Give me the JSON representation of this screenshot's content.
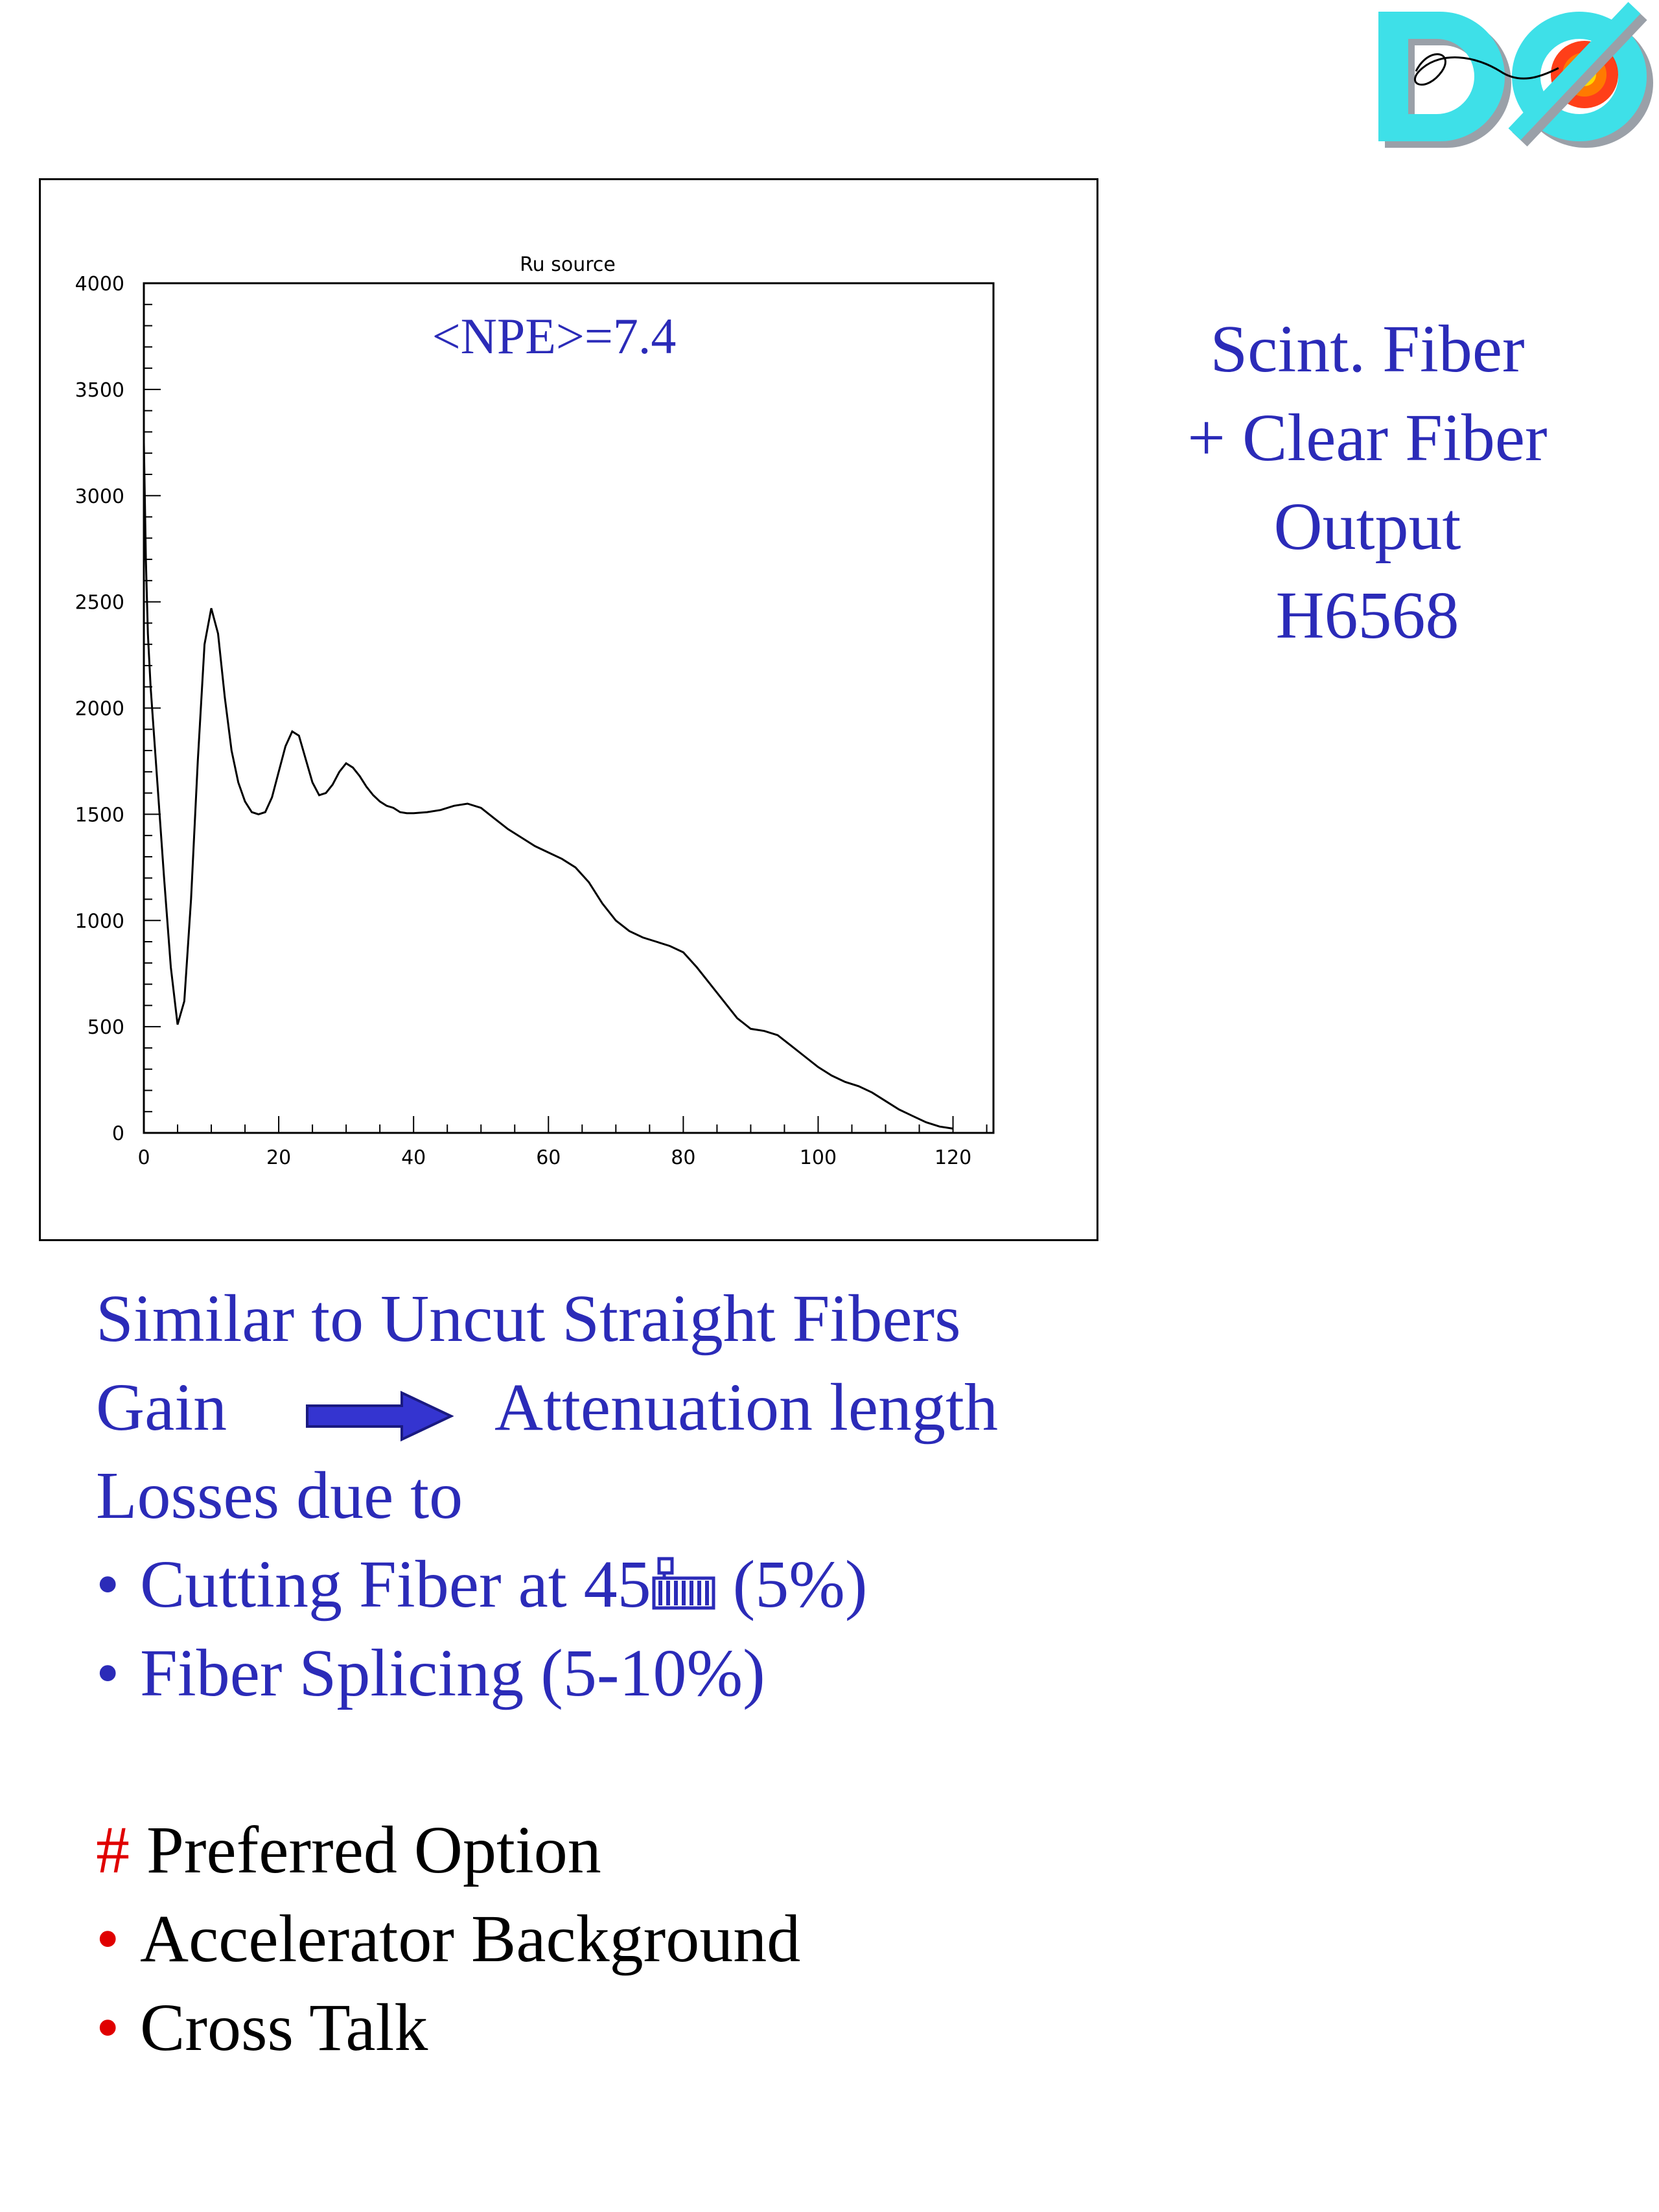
{
  "logo": {
    "text": "DØ",
    "colors": {
      "fill": "#3ee0e8",
      "shadow": "#9aa0a8",
      "burst": "#ff2a00",
      "core": "#ffd800"
    }
  },
  "chart_data": {
    "type": "line",
    "title": "Ru source",
    "annotation": "<NPE>=7.4",
    "xlabel": "",
    "ylabel": "",
    "xlim": [
      0,
      126
    ],
    "ylim": [
      0,
      4000
    ],
    "x_ticks": [
      0,
      20,
      40,
      60,
      80,
      100,
      120
    ],
    "y_ticks": [
      0,
      500,
      1000,
      1500,
      2000,
      2500,
      3000,
      3500,
      4000
    ],
    "series": [
      {
        "x": [
          0,
          0.3,
          0.6,
          1,
          2,
          3,
          4,
          5,
          6,
          7,
          8,
          9,
          10,
          11,
          12,
          13,
          14,
          15,
          16,
          17,
          18,
          19,
          20,
          21,
          22,
          23,
          24,
          25,
          26,
          27,
          28,
          29,
          30,
          31,
          32,
          33,
          34,
          35,
          36,
          37,
          38,
          39,
          40,
          42,
          44,
          46,
          48,
          50,
          52,
          54,
          56,
          58,
          60,
          62,
          64,
          66,
          68,
          70,
          72,
          74,
          76,
          78,
          80,
          82,
          84,
          86,
          88,
          90,
          92,
          94,
          96,
          98,
          100,
          102,
          104,
          106,
          108,
          110,
          112,
          114,
          116,
          118,
          120
        ],
        "y": [
          3250,
          2700,
          2350,
          2100,
          1650,
          1200,
          780,
          510,
          620,
          1100,
          1750,
          2300,
          2470,
          2350,
          2050,
          1800,
          1650,
          1560,
          1510,
          1500,
          1510,
          1580,
          1700,
          1820,
          1890,
          1870,
          1760,
          1650,
          1590,
          1600,
          1640,
          1700,
          1740,
          1720,
          1680,
          1630,
          1590,
          1560,
          1540,
          1530,
          1510,
          1505,
          1505,
          1510,
          1520,
          1540,
          1550,
          1530,
          1480,
          1430,
          1390,
          1350,
          1320,
          1290,
          1250,
          1180,
          1080,
          1000,
          950,
          920,
          900,
          880,
          850,
          780,
          700,
          620,
          540,
          490,
          480,
          460,
          410,
          360,
          310,
          270,
          240,
          220,
          190,
          150,
          110,
          80,
          50,
          30,
          20
        ]
      }
    ],
    "grid": false,
    "color": "#000000"
  },
  "side": {
    "lines": [
      "Scint.  Fiber",
      "+ Clear Fiber",
      "Output",
      "H6568"
    ]
  },
  "body": {
    "line1": "Similar to Uncut Straight Fibers",
    "gain": "Gain",
    "attenuation": "Attenuation length",
    "losses": "Losses due to",
    "bullet": "•",
    "cutting_a": "Cutting Fiber at 45",
    "cutting_b": " (5%)",
    "splicing": "Fiber Splicing (5-10%)",
    "hash": "#",
    "preferred": " Preferred Option",
    "accel": "Accelerator Background",
    "cross": "Cross Talk"
  },
  "colors": {
    "text_blue": "#2b2bb8",
    "text_black": "#000000",
    "text_red": "#e00000",
    "arrow_fill": "#3434d0"
  }
}
